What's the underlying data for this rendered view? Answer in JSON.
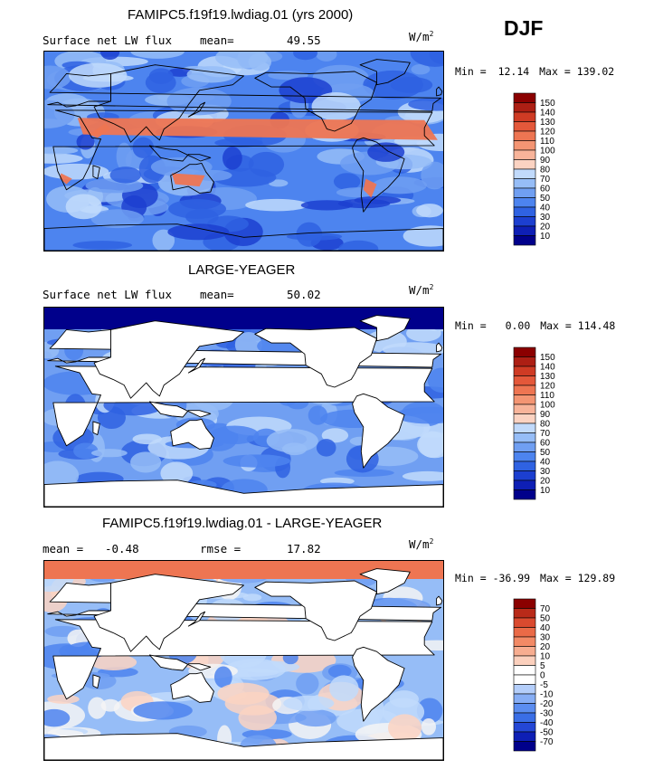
{
  "season_label": "DJF",
  "colors": {
    "warm_scale": [
      "#00008b",
      "#0e1fb5",
      "#1c3fd0",
      "#2f62e2",
      "#4d84ef",
      "#709ff2",
      "#96bdf7",
      "#c1dafb",
      "#f4f4f4",
      "#fbd3c2",
      "#f8b49a",
      "#f49573",
      "#ee7552",
      "#e4583a",
      "#cf3b24",
      "#ad1f14",
      "#8b0000"
    ],
    "land": "#ffffff",
    "outline": "#000000"
  },
  "panels": [
    {
      "id": "model",
      "title": "FAMIPC5.f19f19.lwdiag.01 (yrs 2000)",
      "left_label": "Surface net LW flux",
      "stat_label": "mean=",
      "stat_value": "49.55",
      "units_base": "W/m",
      "units_exp": "2",
      "min_label": "Min =",
      "min_value": "12.14",
      "max_label": "Max =",
      "max_value": "139.02",
      "colorbar_levels": [
        "10",
        "20",
        "30",
        "40",
        "50",
        "60",
        "70",
        "80",
        "90",
        "100",
        "110",
        "120",
        "130",
        "140",
        "150"
      ],
      "land_masked": false
    },
    {
      "id": "obs",
      "title": "LARGE-YEAGER",
      "left_label": "Surface net LW flux",
      "stat_label": "mean=",
      "stat_value": "50.02",
      "units_base": "W/m",
      "units_exp": "2",
      "min_label": "Min =",
      "min_value": "0.00",
      "max_label": "Max =",
      "max_value": "114.48",
      "colorbar_levels": [
        "10",
        "20",
        "30",
        "40",
        "50",
        "60",
        "70",
        "80",
        "90",
        "100",
        "110",
        "120",
        "130",
        "140",
        "150"
      ],
      "land_masked": true
    },
    {
      "id": "diff",
      "title": "FAMIPC5.f19f19.lwdiag.01 - LARGE-YEAGER",
      "left_label": "mean =",
      "left_value": "-0.48",
      "stat_label": "rmse =",
      "stat_value": "17.82",
      "units_base": "W/m",
      "units_exp": "2",
      "min_label": "Min =",
      "min_value": "-36.99",
      "max_label": "Max =",
      "max_value": "129.89",
      "colorbar_levels": [
        "-70",
        "-50",
        "-40",
        "-30",
        "-20",
        "-10",
        "-5",
        "0",
        "5",
        "10",
        "20",
        "30",
        "40",
        "50",
        "70"
      ],
      "land_masked": true
    }
  ]
}
